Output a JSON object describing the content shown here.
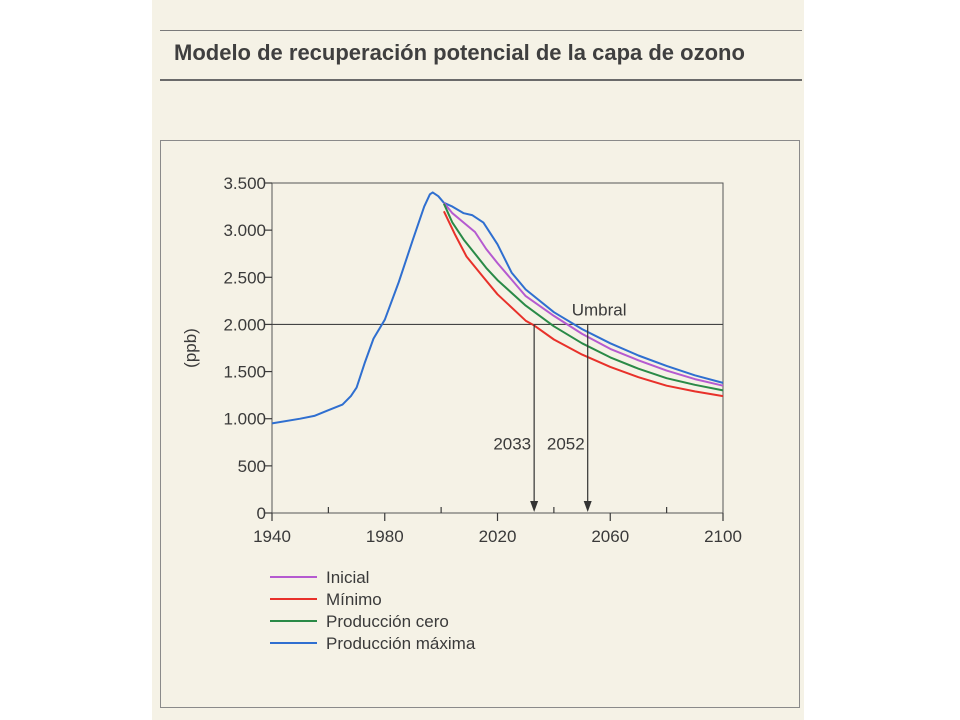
{
  "header": {
    "title": "Modelo de recuperación potencial de la capa de ozono"
  },
  "chart_data": {
    "type": "line",
    "title": "",
    "xlabel": "",
    "ylabel": "(ppb)",
    "xlim": [
      1940,
      2100
    ],
    "ylim": [
      0,
      3500
    ],
    "x_ticks": [
      1940,
      1980,
      2020,
      2060,
      2100
    ],
    "x_tick_labels": [
      "1940",
      "1980",
      "2020",
      "2060",
      "2100"
    ],
    "x_minor_ticks": [
      1960,
      2000,
      2040,
      2080
    ],
    "y_ticks": [
      0,
      500,
      1000,
      1500,
      2000,
      2500,
      3000,
      3500
    ],
    "y_tick_labels": [
      "0",
      "500",
      "1.000",
      "1.500",
      "2.000",
      "2.500",
      "3.000",
      "3.500"
    ],
    "grid": false,
    "threshold": {
      "value": 2000,
      "label": "Umbral"
    },
    "annotations": [
      {
        "x": 2033,
        "label": "2033"
      },
      {
        "x": 2052,
        "label": "2052"
      }
    ],
    "legend_position": "bottom-left",
    "series": [
      {
        "name": "Producción máxima",
        "color": "#2f6fd0",
        "points": [
          [
            1940,
            950
          ],
          [
            1950,
            1000
          ],
          [
            1955,
            1030
          ],
          [
            1960,
            1090
          ],
          [
            1965,
            1150
          ],
          [
            1968,
            1240
          ],
          [
            1970,
            1330
          ],
          [
            1973,
            1600
          ],
          [
            1976,
            1850
          ],
          [
            1980,
            2050
          ],
          [
            1985,
            2450
          ],
          [
            1990,
            2900
          ],
          [
            1994,
            3250
          ],
          [
            1996,
            3380
          ],
          [
            1997,
            3400
          ],
          [
            1999,
            3360
          ],
          [
            2001,
            3290
          ],
          [
            2004,
            3250
          ],
          [
            2008,
            3180
          ],
          [
            2011,
            3160
          ],
          [
            2015,
            3080
          ],
          [
            2020,
            2850
          ],
          [
            2025,
            2550
          ],
          [
            2030,
            2370
          ],
          [
            2040,
            2130
          ],
          [
            2050,
            1950
          ],
          [
            2060,
            1800
          ],
          [
            2070,
            1670
          ],
          [
            2080,
            1560
          ],
          [
            2090,
            1460
          ],
          [
            2100,
            1380
          ]
        ]
      },
      {
        "name": "Inicial",
        "color": "#b55ad0",
        "points": [
          [
            2001,
            3290
          ],
          [
            2004,
            3180
          ],
          [
            2008,
            3080
          ],
          [
            2012,
            2980
          ],
          [
            2016,
            2800
          ],
          [
            2020,
            2650
          ],
          [
            2030,
            2300
          ],
          [
            2040,
            2090
          ],
          [
            2050,
            1900
          ],
          [
            2060,
            1740
          ],
          [
            2070,
            1620
          ],
          [
            2080,
            1510
          ],
          [
            2090,
            1420
          ],
          [
            2100,
            1350
          ]
        ]
      },
      {
        "name": "Producción cero",
        "color": "#2a8a47",
        "points": [
          [
            2001,
            3280
          ],
          [
            2004,
            3080
          ],
          [
            2008,
            2900
          ],
          [
            2012,
            2750
          ],
          [
            2016,
            2600
          ],
          [
            2020,
            2470
          ],
          [
            2030,
            2200
          ],
          [
            2040,
            1980
          ],
          [
            2050,
            1800
          ],
          [
            2060,
            1650
          ],
          [
            2070,
            1530
          ],
          [
            2080,
            1430
          ],
          [
            2090,
            1360
          ],
          [
            2100,
            1300
          ]
        ]
      },
      {
        "name": "Mínimo",
        "color": "#e8312a",
        "points": [
          [
            2001,
            3200
          ],
          [
            2005,
            2950
          ],
          [
            2009,
            2720
          ],
          [
            2015,
            2500
          ],
          [
            2020,
            2320
          ],
          [
            2030,
            2040
          ],
          [
            2033,
            1990
          ],
          [
            2040,
            1840
          ],
          [
            2050,
            1680
          ],
          [
            2060,
            1550
          ],
          [
            2070,
            1440
          ],
          [
            2080,
            1350
          ],
          [
            2090,
            1290
          ],
          [
            2100,
            1240
          ]
        ]
      }
    ],
    "legend": [
      {
        "label": "Inicial",
        "color": "#b55ad0"
      },
      {
        "label": "Mínimo",
        "color": "#e8312a"
      },
      {
        "label": "Producción cero",
        "color": "#2a8a47"
      },
      {
        "label": "Producción máxima",
        "color": "#2f6fd0"
      }
    ]
  }
}
